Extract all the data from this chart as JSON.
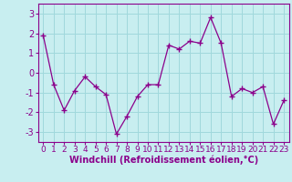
{
  "x": [
    0,
    1,
    2,
    3,
    4,
    5,
    6,
    7,
    8,
    9,
    10,
    11,
    12,
    13,
    14,
    15,
    16,
    17,
    18,
    19,
    20,
    21,
    22,
    23
  ],
  "y": [
    1.9,
    -0.6,
    -1.9,
    -0.9,
    -0.2,
    -0.7,
    -1.1,
    -3.1,
    -2.2,
    -1.2,
    -0.6,
    -0.6,
    1.4,
    1.2,
    1.6,
    1.5,
    2.8,
    1.5,
    -1.2,
    -0.8,
    -1.0,
    -0.7,
    -2.6,
    -1.4
  ],
  "line_color": "#8B008B",
  "marker": "+",
  "bg_color": "#c8eef0",
  "grid_color": "#a0d8dc",
  "xlabel": "Windchill (Refroidissement éolien,°C)",
  "xlabel_color": "#8B008B",
  "tick_color": "#8B008B",
  "spine_color": "#8B008B",
  "ylim": [
    -3.5,
    3.5
  ],
  "yticks": [
    -3,
    -2,
    -1,
    0,
    1,
    2,
    3
  ],
  "xlim": [
    -0.5,
    23.5
  ],
  "ylabel_fontsize": 7.0,
  "xlabel_fontsize": 7.0,
  "tick_fontsize": 6.5
}
